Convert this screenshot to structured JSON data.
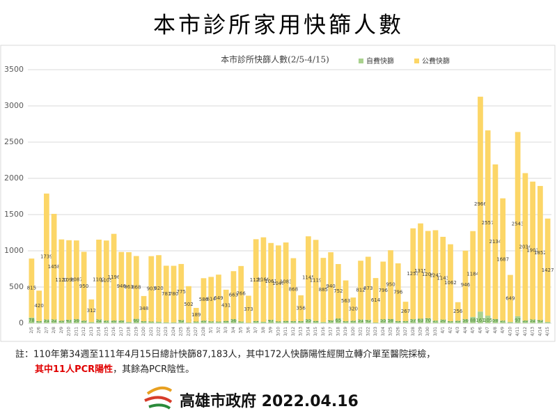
{
  "page_title": "本市診所家用快篩人數",
  "chart_data": {
    "type": "stacked_bar",
    "title": "本市診所快篩人數(2/5-4/15)",
    "categories": [
      "2/5",
      "2/6",
      "2/7",
      "2/8",
      "2/9",
      "2/10",
      "2/11",
      "2/12",
      "2/13",
      "2/14",
      "2/15",
      "2/16",
      "2/17",
      "2/18",
      "2/19",
      "2/20",
      "2/21",
      "2/22",
      "2/23",
      "2/24",
      "2/25",
      "2/26",
      "2/27",
      "2/28",
      "3/1",
      "3/2",
      "3/3",
      "3/4",
      "3/5",
      "3/6",
      "3/7",
      "3/8",
      "3/9",
      "3/10",
      "3/11",
      "3/12",
      "3/13",
      "3/14",
      "3/15",
      "3/16",
      "3/17",
      "3/18",
      "3/19",
      "3/20",
      "3/21",
      "3/22",
      "3/23",
      "3/24",
      "3/25",
      "3/26",
      "3/27",
      "3/28",
      "3/29",
      "3/30",
      "3/31",
      "4/1",
      "4/2",
      "4/3",
      "4/4",
      "4/5",
      "4/6",
      "4/7",
      "4/8",
      "4/9",
      "4/10",
      "4/11",
      "4/12",
      "4/13",
      "4/14",
      "4/15"
    ],
    "series": [
      {
        "name": "自費快篩",
        "color": "#a9d18e",
        "values": [
          78,
          30,
          51,
          52,
          36,
          47,
          56,
          36,
          17,
          52,
          37,
          38,
          38,
          18,
          60,
          28,
          23,
          20,
          13,
          13,
          43,
          10,
          23,
          36,
          26,
          22,
          32,
          56,
          24,
          7,
          31,
          20,
          47,
          25,
          32,
          30,
          30,
          55,
          32,
          17,
          40,
          65,
          28,
          35,
          51,
          45,
          10,
          55,
          58,
          31,
          30,
          57,
          63,
          70,
          37,
          50,
          28,
          35,
          56,
          88,
          161,
          105,
          58,
          37,
          18,
          97,
          38,
          52,
          43,
          18
        ]
      },
      {
        "name": "公費快篩",
        "color": "#fcd667",
        "values": [
          815,
          420,
          1739,
          1458,
          1121,
          1099,
          1087,
          950,
          312,
          1102,
          1105,
          1196,
          946,
          963,
          868,
          348,
          903,
          920,
          781,
          780,
          775,
          502,
          189,
          586,
          614,
          649,
          431,
          663,
          766,
          373,
          1129,
          1166,
          1061,
          1049,
          1083,
          868,
          356,
          1145,
          1119,
          885,
          940,
          752,
          563,
          320,
          812,
          873,
          614,
          796,
          950,
          796,
          267,
          1253,
          1315,
          1204,
          1247,
          1143,
          1062,
          256,
          946,
          1184,
          2966,
          2557,
          2134,
          1687,
          649,
          2543,
          2034,
          1903,
          1852,
          1427
        ]
      }
    ],
    "ylim": [
      0,
      3500
    ],
    "yticks": [
      0,
      500,
      1000,
      1500,
      2000,
      2500,
      3000,
      3500
    ],
    "grid": true,
    "legend": "top-right"
  },
  "footnote": {
    "line1": "註：110年第34週至111年4月15日總計快篩87,183人，其中172人快篩陽性經開立轉介單至醫院採檢，",
    "line2_red": "其中11人PCR陽性",
    "line2_rest": "，其餘為PCR陰性。"
  },
  "footer": "高雄市政府 2022.04.16"
}
